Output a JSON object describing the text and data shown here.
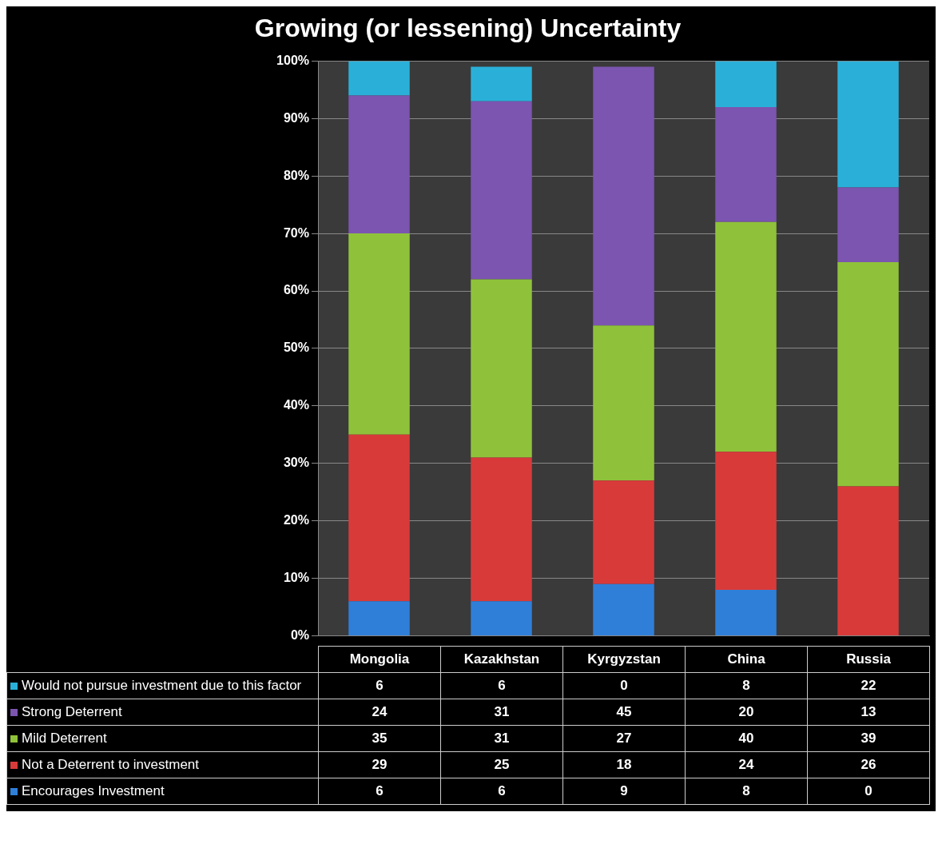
{
  "chart_data": {
    "type": "bar",
    "title": "Growing (or lessening) Uncertainty",
    "stacked": true,
    "categories": [
      "Mongolia",
      "Kazakhstan",
      "Kyrgyzstan",
      "China",
      "Russia"
    ],
    "series": [
      {
        "name": "Encourages Investment",
        "color": "#2f7fd8",
        "values": [
          6,
          6,
          9,
          8,
          0
        ]
      },
      {
        "name": "Not a Deterrent to investment",
        "color": "#d83a3a",
        "values": [
          29,
          25,
          18,
          24,
          26
        ]
      },
      {
        "name": "Mild Deterrent",
        "color": "#8fc23a",
        "values": [
          35,
          31,
          27,
          40,
          39
        ]
      },
      {
        "name": "Strong Deterrent",
        "color": "#7b55b0",
        "values": [
          24,
          31,
          45,
          20,
          13
        ]
      },
      {
        "name": "Would not pursue investment due to this factor",
        "color": "#2ab0d8",
        "values": [
          6,
          6,
          0,
          8,
          22
        ]
      }
    ],
    "ylim": [
      0,
      100
    ],
    "yticks": [
      {
        "value": 0,
        "label": "0%"
      },
      {
        "value": 10,
        "label": "10%"
      },
      {
        "value": 20,
        "label": "20%"
      },
      {
        "value": 30,
        "label": "30%"
      },
      {
        "value": 40,
        "label": "40%"
      },
      {
        "value": 50,
        "label": "50%"
      },
      {
        "value": 60,
        "label": "60%"
      },
      {
        "value": 70,
        "label": "70%"
      },
      {
        "value": 80,
        "label": "80%"
      },
      {
        "value": 90,
        "label": "90%"
      },
      {
        "value": 100,
        "label": "100%"
      }
    ],
    "grid": "y",
    "legend": "bottom left",
    "data_labels": true
  }
}
